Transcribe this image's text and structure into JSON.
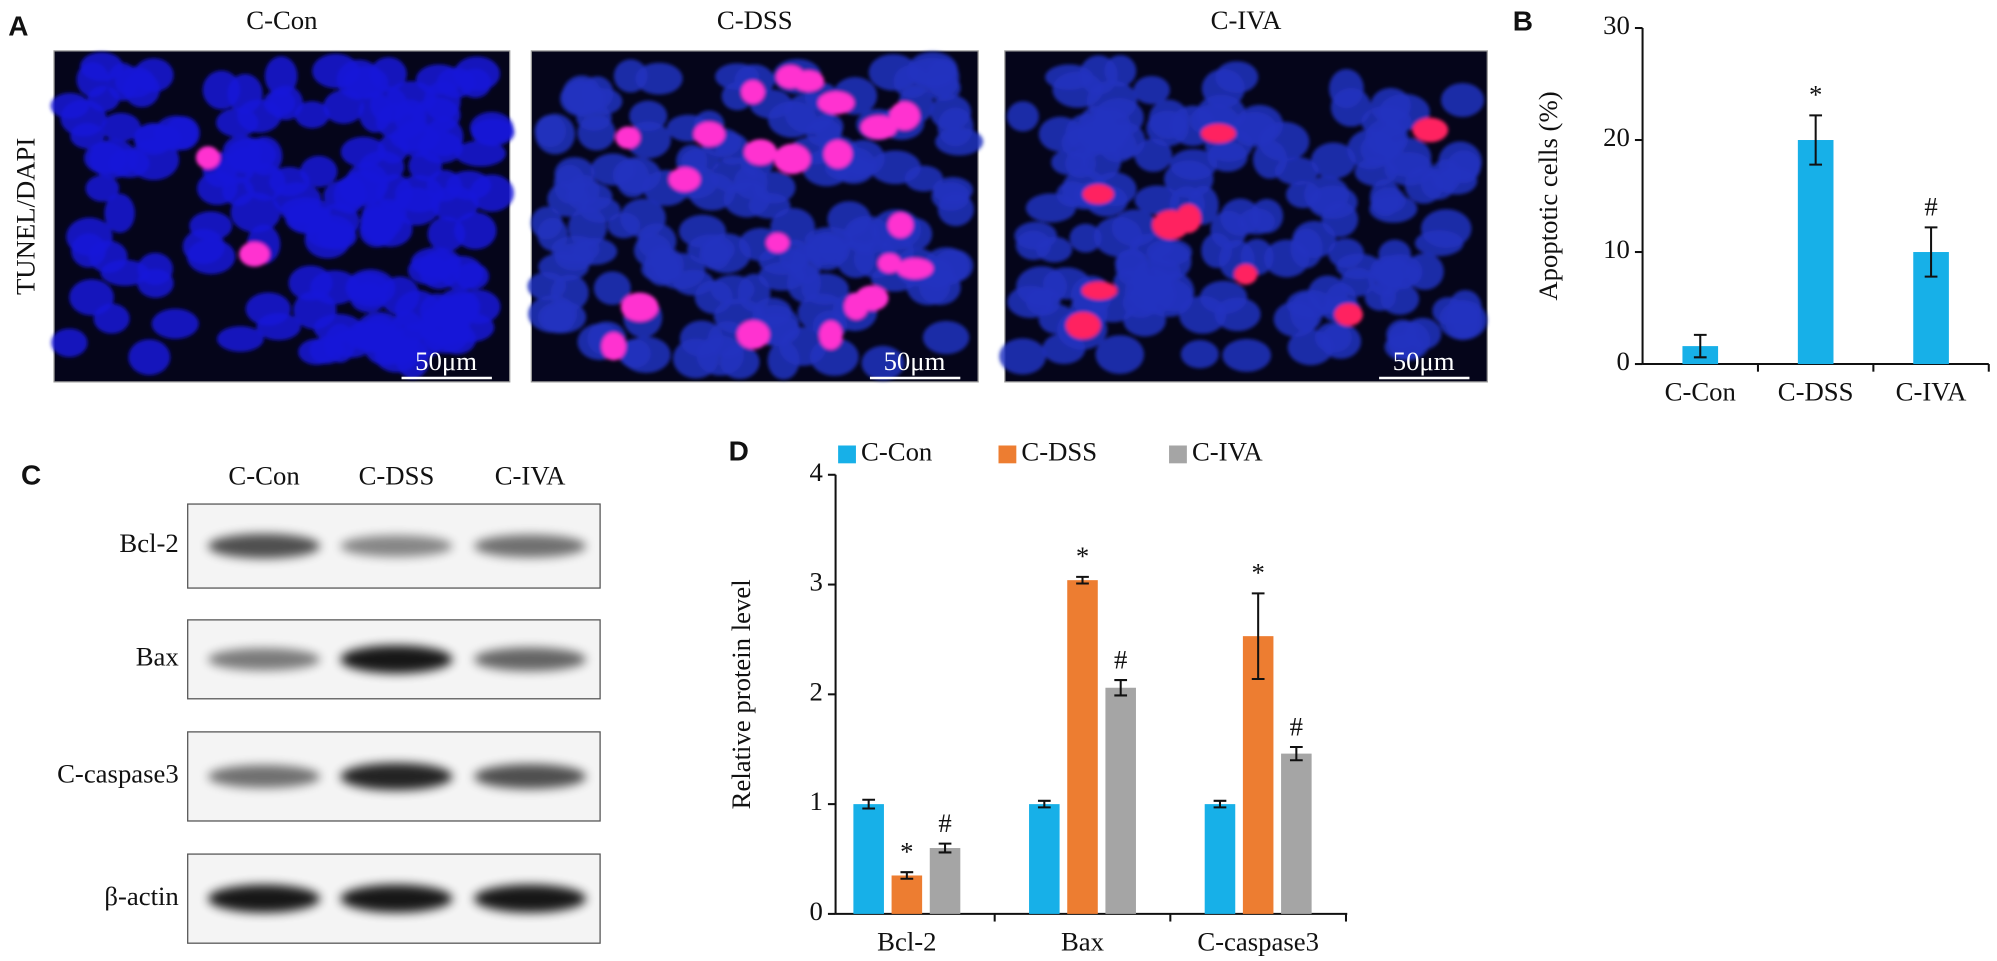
{
  "micrographs": {
    "panel": "A",
    "stain": "TUNEL/DAPI",
    "columns": [
      "C-Con",
      "C-DSS",
      "C-IVA"
    ],
    "scale_bars": [
      "50μm",
      "50μm",
      "50μm"
    ]
  },
  "blot": {
    "panel": "C",
    "lanes": [
      "C-Con",
      "C-DSS",
      "C-IVA"
    ],
    "rows": [
      "Bcl-2",
      "Bax",
      "C-caspase3",
      "β-actin"
    ]
  },
  "chart_data": [
    {
      "type": "bar",
      "panel": "B",
      "ylabel": "Apoptotic cells (%)",
      "categories": [
        "C-Con",
        "C-DSS",
        "C-IVA"
      ],
      "values": [
        1.6,
        20,
        10
      ],
      "errors": [
        1,
        2.2,
        2.2
      ],
      "markers": [
        null,
        "*",
        "#"
      ],
      "color": "#17b0e8",
      "ylim": [
        0,
        30
      ],
      "yticks": [
        0,
        10,
        20,
        30
      ]
    },
    {
      "type": "grouped_bar",
      "panel": "D",
      "ylabel": "Relative protein level",
      "categories": [
        "Bcl-2",
        "Bax",
        "C-caspase3"
      ],
      "series": [
        {
          "name": "C-Con",
          "color": "#17b0e8",
          "values": [
            1,
            1,
            1
          ],
          "errors": [
            0.04,
            0.03,
            0.03
          ],
          "markers": [
            null,
            null,
            null
          ]
        },
        {
          "name": "C-DSS",
          "color": "#ed7d31",
          "values": [
            0.35,
            3.04,
            2.53
          ],
          "errors": [
            0.03,
            0.03,
            0.39
          ],
          "markers": [
            "*",
            "*",
            "*"
          ]
        },
        {
          "name": "C-IVA",
          "color": "#a5a5a5",
          "values": [
            0.6,
            2.06,
            1.46
          ],
          "errors": [
            0.04,
            0.07,
            0.06
          ],
          "markers": [
            "#",
            "#",
            "#"
          ]
        }
      ],
      "legend": "top",
      "ylim": [
        0,
        4
      ],
      "yticks": [
        0,
        1,
        2,
        3,
        4
      ]
    }
  ]
}
